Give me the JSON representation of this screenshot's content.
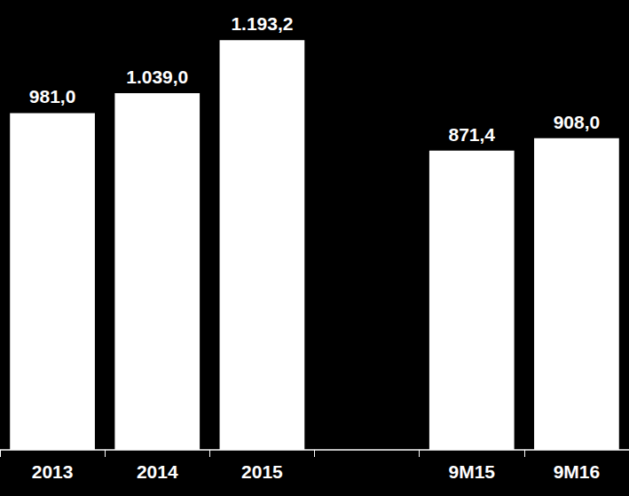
{
  "chart_data": {
    "type": "bar",
    "categories": [
      "2013",
      "2014",
      "2015",
      null,
      "9M15",
      "9M16"
    ],
    "values": [
      981.0,
      1039.0,
      1193.2,
      null,
      871.4,
      908.0
    ],
    "value_labels": [
      "981,0",
      "1.039,0",
      "1.193,2",
      null,
      "871,4",
      "908,0"
    ],
    "color": "#ffffff",
    "ylim": [
      0,
      1300
    ],
    "grid": false,
    "data_labels": true,
    "tick_labels": "x"
  }
}
